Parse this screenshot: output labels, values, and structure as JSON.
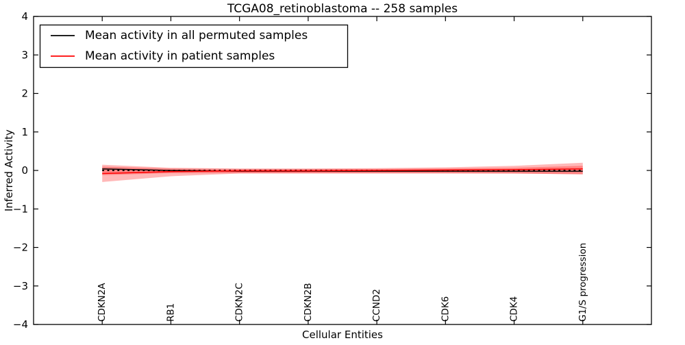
{
  "chart_data": {
    "type": "line",
    "title": "TCGA08_retinoblastoma -- 258 samples",
    "xlabel": "Cellular Entities",
    "ylabel": "Inferred Activity",
    "ylim": [
      -4,
      4
    ],
    "yticks": [
      4,
      3,
      2,
      1,
      0,
      -1,
      -2,
      -3,
      -4
    ],
    "ytick_labels": [
      "4",
      "3",
      "2",
      "1",
      "0",
      "−1",
      "−2",
      "−3",
      "−4"
    ],
    "categories": [
      "CDKN2A",
      "RB1",
      "CDKN2C",
      "CDKN2B",
      "CCND2",
      "CDK6",
      "CDK4",
      "G1/S progression"
    ],
    "grid": false,
    "legend_position": "upper left",
    "band_fill_color": "#ff0000",
    "band_fill_opacity": 0.28,
    "zero_line": {
      "value": 0,
      "style": "dotted",
      "color": "#000000"
    },
    "series": [
      {
        "name": "Mean activity in all permuted samples",
        "color": "#000000",
        "values": [
          0.04,
          0.0,
          -0.02,
          -0.02,
          -0.02,
          -0.02,
          -0.02,
          -0.02
        ],
        "band_top": [
          0.1,
          0.05,
          0.04,
          0.04,
          0.04,
          0.05,
          0.07,
          0.12
        ],
        "band_bottom": [
          -0.12,
          -0.07,
          -0.07,
          -0.07,
          -0.07,
          -0.07,
          -0.08,
          -0.1
        ]
      },
      {
        "name": "Mean activity in patient samples",
        "color": "#ff0000",
        "values": [
          -0.08,
          -0.03,
          -0.01,
          -0.01,
          0.0,
          0.01,
          0.02,
          0.04
        ],
        "band_top": [
          0.15,
          0.07,
          0.05,
          0.05,
          0.06,
          0.08,
          0.12,
          0.2
        ],
        "band_bottom": [
          -0.3,
          -0.15,
          -0.08,
          -0.08,
          -0.08,
          -0.08,
          -0.08,
          -0.1
        ]
      }
    ]
  }
}
